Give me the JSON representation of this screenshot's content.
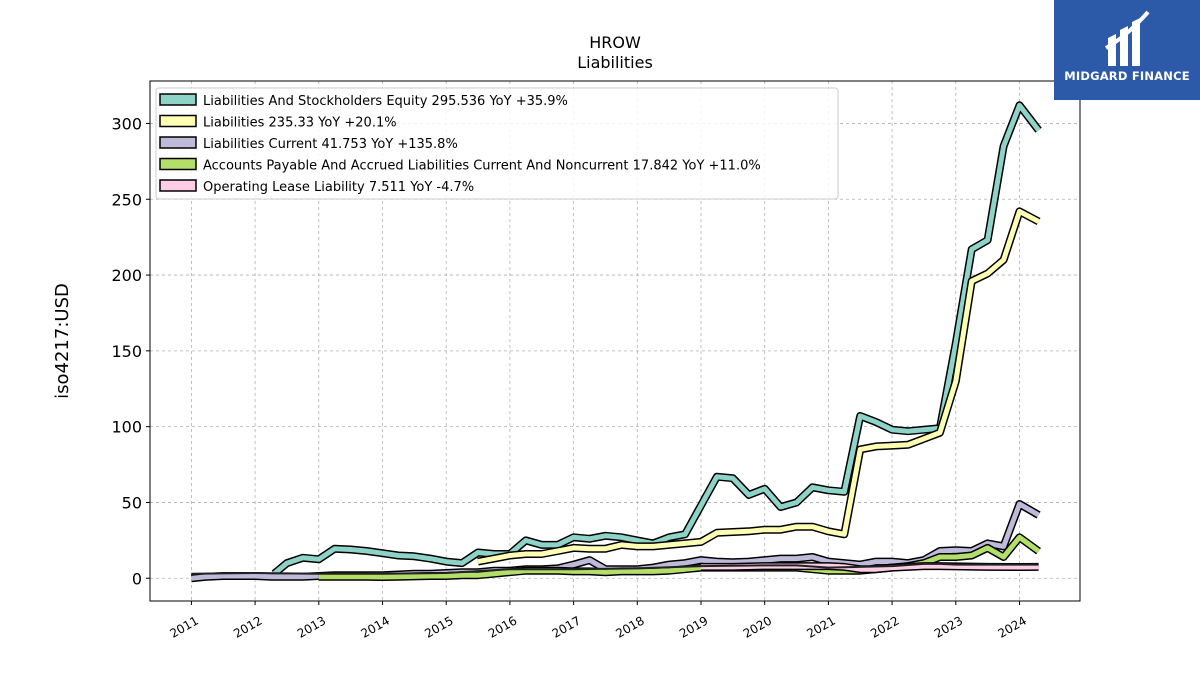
{
  "brand": {
    "name": "MIDGARD FINANCE",
    "color": "#2c5aa8"
  },
  "chart_data": {
    "type": "line",
    "title": "HROW",
    "subtitle": "Liabilities",
    "ylabel": "iso4217:USD",
    "xlabel": "",
    "ylim": [
      -15,
      328
    ],
    "xlim": [
      2010.35,
      2024.95
    ],
    "yticks": [
      0,
      50,
      100,
      150,
      200,
      250,
      300
    ],
    "xticks": [
      "2011",
      "2012",
      "2013",
      "2014",
      "2015",
      "2016",
      "2017",
      "2018",
      "2019",
      "2020",
      "2021",
      "2022",
      "2023",
      "2024"
    ],
    "grid": true,
    "legend_position": "top-left",
    "series": [
      {
        "name": "Liabilities And Stockholders Equity",
        "legend_label": "Liabilities And Stockholders Equity  295.536 YoY +35.9%",
        "color": "#8dd3c7",
        "points": [
          [
            2012.3,
            3
          ],
          [
            2012.5,
            10
          ],
          [
            2012.75,
            13.5
          ],
          [
            2013.0,
            12.5
          ],
          [
            2013.25,
            19.5
          ],
          [
            2013.5,
            19
          ],
          [
            2013.75,
            18
          ],
          [
            2014.0,
            16.5
          ],
          [
            2014.25,
            15
          ],
          [
            2014.5,
            14.5
          ],
          [
            2014.75,
            13
          ],
          [
            2015.0,
            11
          ],
          [
            2015.25,
            10
          ],
          [
            2015.5,
            17
          ],
          [
            2015.75,
            16
          ],
          [
            2016.0,
            16
          ],
          [
            2016.25,
            25
          ],
          [
            2016.5,
            22
          ],
          [
            2016.75,
            22
          ],
          [
            2017.0,
            27
          ],
          [
            2017.25,
            26
          ],
          [
            2017.5,
            28
          ],
          [
            2017.75,
            27
          ],
          [
            2018.0,
            25
          ],
          [
            2018.25,
            23
          ],
          [
            2018.5,
            27
          ],
          [
            2018.75,
            29
          ],
          [
            2019.0,
            48
          ],
          [
            2019.25,
            67
          ],
          [
            2019.5,
            66
          ],
          [
            2019.75,
            55
          ],
          [
            2020.0,
            59
          ],
          [
            2020.25,
            47
          ],
          [
            2020.5,
            50
          ],
          [
            2020.75,
            60
          ],
          [
            2021.0,
            58
          ],
          [
            2021.25,
            57
          ],
          [
            2021.5,
            107
          ],
          [
            2021.75,
            103
          ],
          [
            2022.0,
            98
          ],
          [
            2022.25,
            97
          ],
          [
            2022.5,
            98
          ],
          [
            2022.75,
            99
          ],
          [
            2023.0,
            155
          ],
          [
            2023.25,
            217
          ],
          [
            2023.5,
            223
          ],
          [
            2023.75,
            285
          ],
          [
            2024.0,
            312
          ],
          [
            2024.3,
            295.536
          ]
        ]
      },
      {
        "name": "Liabilities",
        "legend_label": "Liabilities  235.33 YoY +20.1%",
        "color": "#ffffb3",
        "points": [
          [
            2015.5,
            11
          ],
          [
            2015.75,
            13
          ],
          [
            2016.0,
            15
          ],
          [
            2016.25,
            16
          ],
          [
            2016.5,
            16
          ],
          [
            2016.75,
            18
          ],
          [
            2017.0,
            20
          ],
          [
            2017.25,
            19.5
          ],
          [
            2017.5,
            19.5
          ],
          [
            2017.75,
            22
          ],
          [
            2018.0,
            21
          ],
          [
            2018.25,
            21
          ],
          [
            2018.5,
            22
          ],
          [
            2018.75,
            23
          ],
          [
            2019.0,
            24
          ],
          [
            2019.25,
            30
          ],
          [
            2019.5,
            30.5
          ],
          [
            2019.75,
            31
          ],
          [
            2020.0,
            32
          ],
          [
            2020.25,
            32
          ],
          [
            2020.5,
            34
          ],
          [
            2020.75,
            34
          ],
          [
            2021.0,
            31
          ],
          [
            2021.25,
            29
          ],
          [
            2021.5,
            85
          ],
          [
            2021.75,
            87
          ],
          [
            2022.0,
            87.5
          ],
          [
            2022.25,
            88
          ],
          [
            2022.5,
            92
          ],
          [
            2022.75,
            96
          ],
          [
            2023.0,
            130
          ],
          [
            2023.25,
            196
          ],
          [
            2023.5,
            201
          ],
          [
            2023.75,
            210
          ],
          [
            2024.0,
            242
          ],
          [
            2024.3,
            235.33
          ]
        ]
      },
      {
        "name": "Liabilities Current",
        "legend_label": "Liabilities Current  41.753 YoY +135.8%",
        "color": "#bebada",
        "points": [
          [
            2011.0,
            0
          ],
          [
            2011.25,
            1
          ],
          [
            2011.5,
            1.5
          ],
          [
            2011.75,
            1.5
          ],
          [
            2012.0,
            1.5
          ],
          [
            2012.25,
            1
          ],
          [
            2012.5,
            1
          ],
          [
            2012.75,
            1
          ],
          [
            2013.0,
            1.5
          ],
          [
            2013.25,
            2
          ],
          [
            2013.5,
            2
          ],
          [
            2013.75,
            2
          ],
          [
            2014.0,
            2
          ],
          [
            2014.25,
            2.5
          ],
          [
            2014.5,
            3
          ],
          [
            2014.75,
            3
          ],
          [
            2015.0,
            3.5
          ],
          [
            2015.25,
            4
          ],
          [
            2015.5,
            4
          ],
          [
            2015.75,
            5
          ],
          [
            2016.0,
            5
          ],
          [
            2016.25,
            6
          ],
          [
            2016.5,
            6
          ],
          [
            2016.75,
            6.5
          ],
          [
            2017.0,
            9
          ],
          [
            2017.25,
            12
          ],
          [
            2017.5,
            6
          ],
          [
            2017.75,
            6
          ],
          [
            2018.0,
            6
          ],
          [
            2018.25,
            7
          ],
          [
            2018.5,
            9
          ],
          [
            2018.75,
            10
          ],
          [
            2019.0,
            12
          ],
          [
            2019.25,
            11
          ],
          [
            2019.5,
            10.5
          ],
          [
            2019.75,
            11
          ],
          [
            2020.0,
            12
          ],
          [
            2020.25,
            13
          ],
          [
            2020.5,
            13
          ],
          [
            2020.75,
            14
          ],
          [
            2021.0,
            11
          ],
          [
            2021.25,
            10
          ],
          [
            2021.5,
            9
          ],
          [
            2021.75,
            11
          ],
          [
            2022.0,
            11
          ],
          [
            2022.25,
            10
          ],
          [
            2022.5,
            12
          ],
          [
            2022.75,
            18
          ],
          [
            2023.0,
            18.5
          ],
          [
            2023.25,
            18
          ],
          [
            2023.5,
            23
          ],
          [
            2023.75,
            21
          ],
          [
            2024.0,
            49
          ],
          [
            2024.3,
            41.753
          ]
        ]
      },
      {
        "name": "Accounts Payable And Accrued Liabilities Current And Noncurrent",
        "legend_label": "Accounts Payable And Accrued Liabilities Current And Noncurrent  17.842 YoY +11.0%",
        "color": "#b3de69",
        "points": [
          [
            2013.0,
            1
          ],
          [
            2013.25,
            1
          ],
          [
            2013.5,
            1
          ],
          [
            2013.75,
            1
          ],
          [
            2014.0,
            0.8
          ],
          [
            2014.25,
            1
          ],
          [
            2014.5,
            1.2
          ],
          [
            2014.75,
            1.5
          ],
          [
            2015.0,
            1.5
          ],
          [
            2015.25,
            2
          ],
          [
            2015.5,
            2
          ],
          [
            2015.75,
            3
          ],
          [
            2016.0,
            4
          ],
          [
            2016.25,
            5
          ],
          [
            2016.5,
            5
          ],
          [
            2016.75,
            5
          ],
          [
            2017.0,
            4.5
          ],
          [
            2017.25,
            4.5
          ],
          [
            2017.5,
            4
          ],
          [
            2017.75,
            4.5
          ],
          [
            2018.0,
            4.5
          ],
          [
            2018.25,
            4.5
          ],
          [
            2018.5,
            5
          ],
          [
            2018.75,
            6
          ],
          [
            2019.0,
            7
          ],
          [
            2019.25,
            7
          ],
          [
            2019.5,
            7
          ],
          [
            2019.75,
            7
          ],
          [
            2020.0,
            7
          ],
          [
            2020.25,
            7
          ],
          [
            2020.5,
            7
          ],
          [
            2020.75,
            6
          ],
          [
            2021.0,
            5
          ],
          [
            2021.25,
            5
          ],
          [
            2021.5,
            5
          ],
          [
            2021.75,
            6
          ],
          [
            2022.0,
            7
          ],
          [
            2022.25,
            8
          ],
          [
            2022.5,
            10
          ],
          [
            2022.75,
            14
          ],
          [
            2023.0,
            14
          ],
          [
            2023.25,
            15
          ],
          [
            2023.5,
            20
          ],
          [
            2023.75,
            14
          ],
          [
            2024.0,
            27
          ],
          [
            2024.3,
            17.842
          ]
        ]
      },
      {
        "name": "Operating Lease Liability",
        "legend_label": "Operating Lease Liability  7.511 YoY -4.7%",
        "color": "#fccde5",
        "points": [
          [
            2019.0,
            7.5
          ],
          [
            2019.5,
            7.5
          ],
          [
            2020.0,
            8
          ],
          [
            2020.5,
            8
          ],
          [
            2021.0,
            8
          ],
          [
            2021.25,
            7.5
          ],
          [
            2021.5,
            6
          ],
          [
            2021.75,
            6
          ],
          [
            2022.0,
            7
          ],
          [
            2022.25,
            7.5
          ],
          [
            2022.5,
            8
          ],
          [
            2022.75,
            8
          ],
          [
            2023.0,
            7.8
          ],
          [
            2023.5,
            7.5
          ],
          [
            2024.0,
            7.4
          ],
          [
            2024.3,
            7.511
          ]
        ]
      },
      {
        "name": "",
        "color": "#222222",
        "points": [
          [
            2011.0,
            3
          ],
          [
            2012.0,
            3.5
          ],
          [
            2013.0,
            3
          ],
          [
            2014.0,
            3
          ],
          [
            2015.0,
            3.5
          ],
          [
            2016.0,
            6
          ],
          [
            2017.0,
            6
          ],
          [
            2018.0,
            6.5
          ],
          [
            2019.0,
            8
          ],
          [
            2020.0,
            8.5
          ],
          [
            2020.5,
            8.5
          ],
          [
            2021.0,
            7
          ],
          [
            2022.0,
            8
          ],
          [
            2022.5,
            9.5
          ],
          [
            2022.75,
            9.5
          ],
          [
            2023.0,
            9
          ],
          [
            2024.0,
            9
          ],
          [
            2024.3,
            9
          ]
        ]
      }
    ]
  }
}
